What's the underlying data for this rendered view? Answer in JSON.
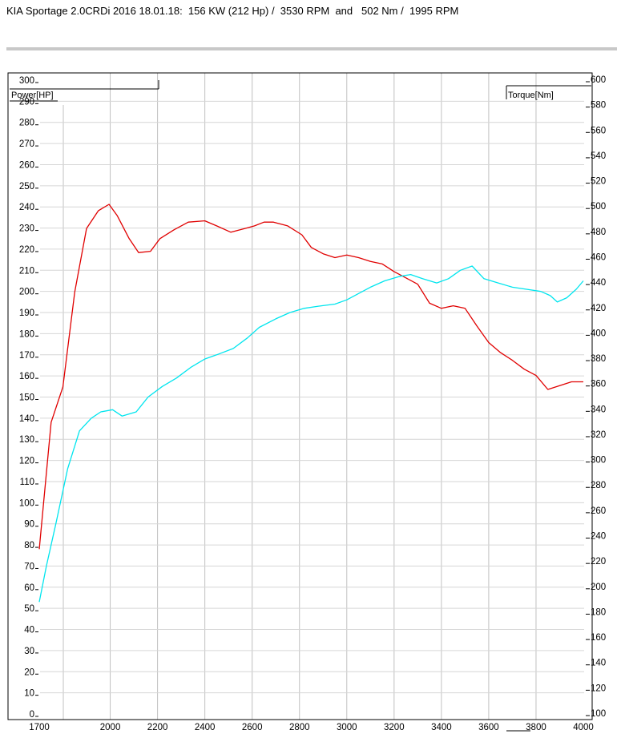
{
  "header": {
    "title": "KIA Sportage 2.0CRDi 2016 18.01.18:  156 KW (212 Hp) /  3530 RPM  and   502 Nm /  1995 RPM"
  },
  "chart_data": {
    "type": "line",
    "x_label": "",
    "left_axis_label": "Power[HP]",
    "right_axis_label": "Torque[Nm]",
    "x_ticks": [
      1700,
      2000,
      2200,
      2400,
      2600,
      2800,
      3000,
      3200,
      3400,
      3600,
      3800,
      4000
    ],
    "x_range": [
      1700,
      4000
    ],
    "left_ticks": [
      0,
      10,
      20,
      30,
      40,
      50,
      60,
      70,
      80,
      90,
      100,
      110,
      120,
      130,
      140,
      150,
      160,
      170,
      180,
      190,
      200,
      210,
      220,
      230,
      240,
      250,
      260,
      270,
      280,
      290,
      300
    ],
    "left_range": [
      0,
      300
    ],
    "right_ticks": [
      100,
      120,
      140,
      160,
      180,
      200,
      220,
      240,
      260,
      280,
      300,
      320,
      340,
      360,
      380,
      400,
      420,
      440,
      460,
      480,
      500,
      520,
      540,
      560,
      580,
      600
    ],
    "right_range": [
      100,
      600
    ],
    "grid": true,
    "colors": {
      "torque": "#e00000",
      "power": "#00e5ee",
      "grid": "#c0c0c0"
    },
    "series": [
      {
        "name": "Torque[Nm]",
        "key": "torque",
        "axis": "right",
        "x": [
          1700,
          1750,
          1800,
          1850,
          1900,
          1950,
          1995,
          2030,
          2080,
          2120,
          2170,
          2210,
          2270,
          2330,
          2400,
          2450,
          2510,
          2570,
          2610,
          2650,
          2690,
          2750,
          2810,
          2850,
          2900,
          2950,
          3000,
          3050,
          3100,
          3150,
          3200,
          3250,
          3300,
          3350,
          3400,
          3450,
          3500,
          3550,
          3600,
          3650,
          3700,
          3750,
          3800,
          3850,
          3900,
          3950,
          4000
        ],
        "y": [
          230,
          330,
          358,
          433,
          483,
          497,
          502,
          493,
          475,
          464,
          465,
          475,
          482,
          488,
          489,
          485,
          480,
          483,
          485,
          488,
          488,
          485,
          478,
          468,
          463,
          460,
          462,
          460,
          457,
          455,
          449,
          444,
          439,
          424,
          420,
          422,
          420,
          406,
          393,
          385,
          379,
          372,
          367,
          356,
          359,
          362,
          362
        ]
      },
      {
        "name": "Power[HP]",
        "key": "power",
        "axis": "left",
        "x": [
          1700,
          1730,
          1770,
          1820,
          1870,
          1920,
          1960,
          2010,
          2050,
          2110,
          2160,
          2220,
          2280,
          2340,
          2400,
          2450,
          2520,
          2580,
          2630,
          2700,
          2760,
          2820,
          2880,
          2950,
          3000,
          3050,
          3100,
          3160,
          3220,
          3270,
          3320,
          3380,
          3430,
          3480,
          3530,
          3580,
          3640,
          3700,
          3760,
          3820,
          3860,
          3890,
          3930,
          3970,
          4000
        ],
        "y": [
          53,
          70,
          90,
          116,
          134,
          140,
          143,
          144,
          141,
          143,
          150,
          155,
          159,
          164,
          168,
          170,
          173,
          178,
          183,
          187,
          190,
          192,
          193,
          194,
          196,
          199,
          202,
          205,
          207,
          208,
          206,
          204,
          206,
          210,
          212,
          206,
          204,
          202,
          201,
          200,
          198,
          195,
          197,
          201,
          205
        ]
      }
    ]
  }
}
